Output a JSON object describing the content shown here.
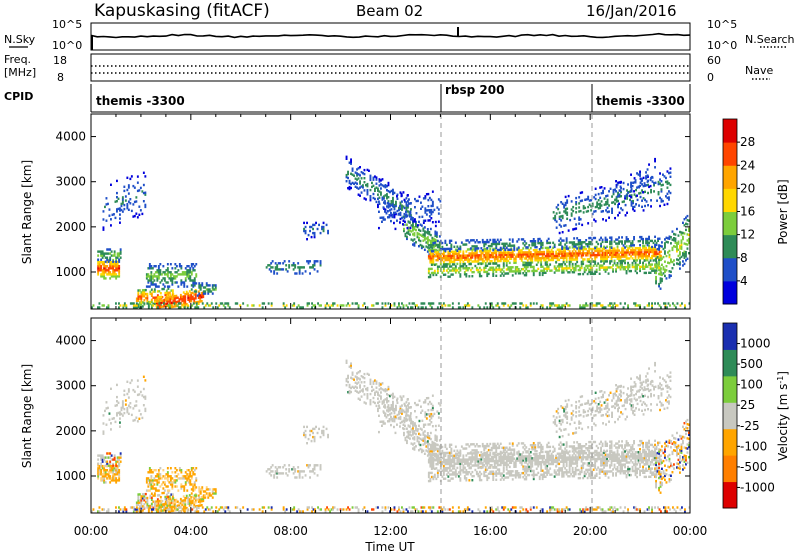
{
  "header": {
    "station": "Kapuskasing (fitACF)",
    "beam": "Beam 02",
    "date": "16/Jan/2016"
  },
  "top_panels": {
    "nsky_label": "N.Sky",
    "nsky_ticks_left": [
      "10^5",
      "10^0"
    ],
    "nsky_ticks_right": [
      "10^5",
      "10^0"
    ],
    "nsearch_label": "N.Search",
    "freq_label_1": "Freq.",
    "freq_label_2": "[MHz]",
    "freq_ticks": [
      "18",
      "8"
    ],
    "nave_ticks": [
      "60",
      "0"
    ],
    "nave_label": "Nave",
    "cpid_label": "CPID",
    "cpid_segments": [
      "themis -3300",
      "rbsp 200",
      "themis -3300"
    ]
  },
  "chart_data": [
    {
      "type": "heatmap",
      "name": "power",
      "ylabel": "Slant Range [km]",
      "ylim": [
        180,
        4500
      ],
      "yticks": [
        "1000",
        "2000",
        "3000",
        "4000"
      ],
      "xlim": [
        0,
        24
      ],
      "colorbar_label": "Power [dB]",
      "colorbar_ticks": [
        "28",
        "24",
        "20",
        "16",
        "12",
        "8",
        "4"
      ],
      "colorbar_colors": [
        "#0000dd",
        "#1f4fc8",
        "#2e8b57",
        "#7ccd3c",
        "#ffd700",
        "#ffa500",
        "#ff4500",
        "#dd0000"
      ],
      "grid": false
    },
    {
      "type": "heatmap",
      "name": "velocity",
      "ylabel": "Slant Range [km]",
      "ylim": [
        180,
        4500
      ],
      "yticks": [
        "1000",
        "2000",
        "3000",
        "4000"
      ],
      "xlim": [
        0,
        24
      ],
      "xticks": [
        "00:00",
        "04:00",
        "08:00",
        "12:00",
        "16:00",
        "20:00",
        "00:00"
      ],
      "xlabel": "Time UT",
      "colorbar_label": "Velocity [m s",
      "colorbar_label_sup": "-1",
      "colorbar_ticks": [
        "1000",
        "500",
        "100",
        "25",
        "-25",
        "-100",
        "-500",
        "-1000"
      ],
      "colorbar_colors": [
        "#1a2fb0",
        "#2e8b57",
        "#7ccd3c",
        "#c8c8c0",
        "#ffa500",
        "#ff7f00",
        "#dd0000"
      ],
      "grid": false
    }
  ]
}
